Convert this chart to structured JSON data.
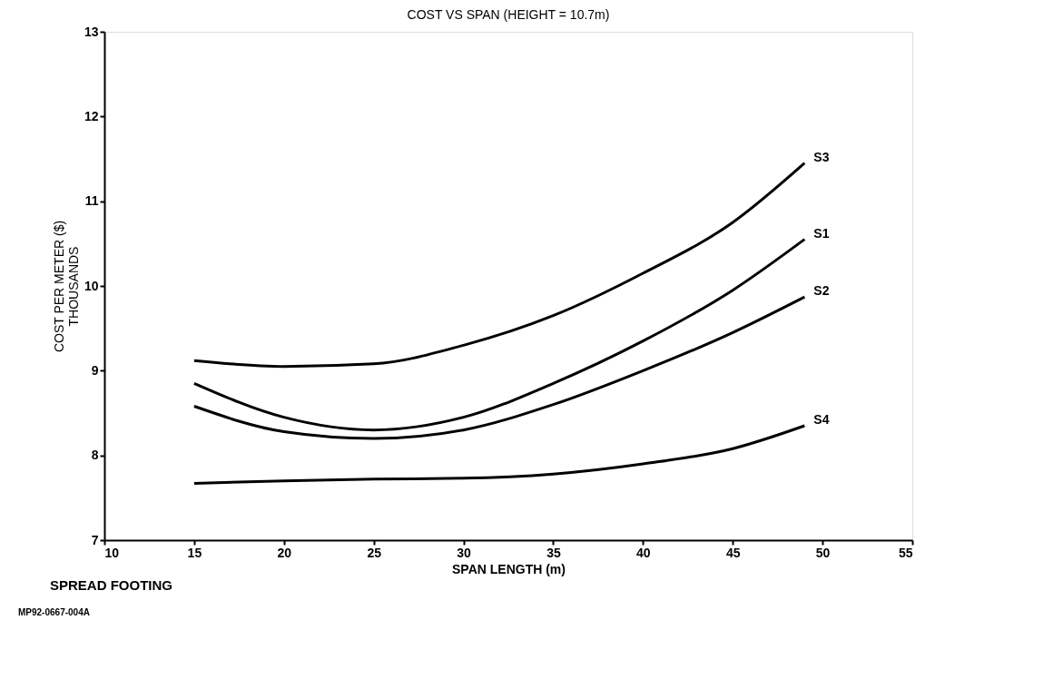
{
  "chart_data": {
    "type": "line",
    "title": "COST VS SPAN (HEIGHT = 10.7m)",
    "xlabel": "SPAN LENGTH (m)",
    "ylabel": [
      "COST PER METER ($)",
      "THOUSANDS"
    ],
    "x": [
      15,
      20,
      25,
      30,
      35,
      40,
      45,
      49
    ],
    "series": [
      {
        "name": "S3",
        "color": "#000000",
        "values": [
          9.12,
          9.05,
          9.08,
          9.3,
          9.65,
          10.15,
          10.75,
          11.45
        ]
      },
      {
        "name": "S1",
        "color": "#000000",
        "values": [
          8.85,
          8.45,
          8.3,
          8.45,
          8.85,
          9.35,
          9.95,
          10.55
        ]
      },
      {
        "name": "S2",
        "color": "#000000",
        "values": [
          8.58,
          8.28,
          8.2,
          8.3,
          8.6,
          9.0,
          9.45,
          9.87
        ]
      },
      {
        "name": "S4",
        "color": "#000000",
        "values": [
          7.67,
          7.7,
          7.72,
          7.73,
          7.78,
          7.9,
          8.08,
          8.35
        ]
      }
    ],
    "xlim": [
      10,
      55
    ],
    "xticks": [
      10,
      15,
      20,
      25,
      30,
      35,
      40,
      45,
      50,
      55
    ],
    "ylim": [
      7,
      13
    ],
    "yticks": [
      7,
      8,
      9,
      10,
      11,
      12,
      13
    ],
    "grid": false,
    "legend": false,
    "marker": "none",
    "line_style": "solid",
    "annotations": [
      "SPREAD FOOTING",
      "MP92-0667-004A"
    ]
  }
}
